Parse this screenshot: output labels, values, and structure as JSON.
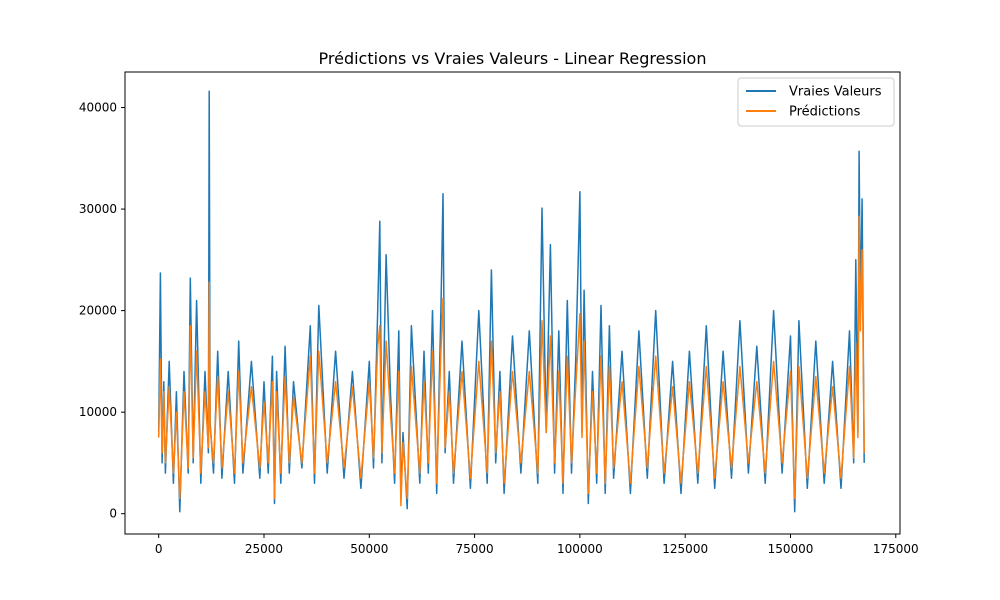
{
  "chart_data": {
    "type": "line",
    "title": "Prédictions vs Vraies Valeurs - Linear Regression",
    "xlabel": "",
    "ylabel": "",
    "xlim": [
      -8000,
      176000
    ],
    "ylim": [
      -2000,
      43500
    ],
    "x_ticks": [
      0,
      25000,
      50000,
      75000,
      100000,
      125000,
      150000,
      175000
    ],
    "y_ticks": [
      0,
      10000,
      20000,
      30000,
      40000
    ],
    "x_tick_labels": [
      "0",
      "25000",
      "50000",
      "75000",
      "100000",
      "125000",
      "150000",
      "175000"
    ],
    "y_tick_labels": [
      "0",
      "10000",
      "20000",
      "30000",
      "40000"
    ],
    "legend": {
      "placement": "top-right"
    },
    "grid": false,
    "series": [
      {
        "name": "Vraies Valeurs",
        "color": "#1f77b4",
        "x": [
          0,
          400,
          800,
          1200,
          1600,
          2500,
          3500,
          4200,
          5000,
          6000,
          7000,
          7500,
          8200,
          9000,
          10000,
          11000,
          11800,
          12000,
          12200,
          13000,
          14000,
          15000,
          16500,
          18000,
          19000,
          20000,
          22000,
          24000,
          25000,
          26000,
          27000,
          27500,
          28000,
          29000,
          30000,
          31000,
          32000,
          34000,
          36000,
          37000,
          38000,
          40000,
          42000,
          44000,
          46000,
          48000,
          50000,
          51000,
          52000,
          52500,
          53000,
          54000,
          55000,
          56000,
          57000,
          57500,
          58000,
          59000,
          60000,
          62000,
          63000,
          64000,
          65000,
          66000,
          67000,
          67500,
          68000,
          69000,
          70000,
          72000,
          74000,
          76000,
          78000,
          79000,
          80000,
          81000,
          82000,
          84000,
          86000,
          88000,
          90000,
          91000,
          92000,
          93000,
          94000,
          95000,
          96000,
          97000,
          98000,
          99000,
          100000,
          100500,
          101000,
          102000,
          103000,
          104000,
          105000,
          106000,
          107000,
          108000,
          110000,
          112000,
          114000,
          116000,
          118000,
          120000,
          122000,
          124000,
          126000,
          128000,
          130000,
          132000,
          134000,
          136000,
          138000,
          140000,
          142000,
          144000,
          146000,
          148000,
          150000,
          151000,
          152000,
          154000,
          156000,
          158000,
          160000,
          162000,
          164000,
          165000,
          165500,
          166000,
          166300,
          166600,
          167000,
          167500
        ],
        "y": [
          8000,
          23700,
          5000,
          13000,
          4000,
          15000,
          3000,
          12000,
          200,
          14000,
          4000,
          23200,
          5000,
          21000,
          3000,
          14000,
          6000,
          41600,
          9000,
          4000,
          16000,
          3500,
          14000,
          3000,
          17000,
          4000,
          15000,
          3500,
          13000,
          4000,
          15500,
          1000,
          14000,
          3000,
          16500,
          4000,
          13000,
          4500,
          18500,
          3000,
          20500,
          4000,
          16000,
          3500,
          14000,
          2500,
          15000,
          4500,
          20000,
          28800,
          5000,
          25500,
          12000,
          3000,
          18000,
          1500,
          8000,
          500,
          18500,
          3000,
          16000,
          4000,
          20000,
          2000,
          20000,
          31500,
          6000,
          14000,
          3000,
          17000,
          2500,
          20000,
          3000,
          24000,
          5000,
          14000,
          2000,
          17500,
          4000,
          18000,
          3000,
          30100,
          8000,
          26500,
          4000,
          18000,
          2000,
          21000,
          4000,
          15000,
          31700,
          8000,
          22000,
          1000,
          14000,
          3000,
          20500,
          2000,
          18500,
          3500,
          16000,
          2000,
          18000,
          3500,
          20000,
          3000,
          15000,
          2000,
          16000,
          3000,
          18500,
          2500,
          16000,
          3500,
          19000,
          4000,
          16500,
          3000,
          20000,
          4000,
          17500,
          200,
          19000,
          2500,
          17000,
          3000,
          15000,
          2500,
          18000,
          5000,
          25000,
          8000,
          35700,
          20000,
          31000,
          5000
        ]
      },
      {
        "name": "Prédictions",
        "color": "#ff7f0e",
        "x": [
          0,
          400,
          800,
          1200,
          1600,
          2500,
          3500,
          4200,
          5000,
          6000,
          7000,
          7500,
          8200,
          9000,
          10000,
          11000,
          11800,
          12000,
          12200,
          13000,
          14000,
          15000,
          16500,
          18000,
          19000,
          20000,
          22000,
          24000,
          25000,
          26000,
          27000,
          27500,
          28000,
          29000,
          30000,
          31000,
          32000,
          34000,
          36000,
          37000,
          38000,
          40000,
          42000,
          44000,
          46000,
          48000,
          50000,
          51000,
          52000,
          52500,
          53000,
          54000,
          55000,
          56000,
          57000,
          57500,
          58000,
          59000,
          60000,
          62000,
          63000,
          64000,
          65000,
          66000,
          67000,
          67500,
          68000,
          69000,
          70000,
          72000,
          74000,
          76000,
          78000,
          79000,
          80000,
          81000,
          82000,
          84000,
          86000,
          88000,
          90000,
          91000,
          92000,
          93000,
          94000,
          95000,
          96000,
          97000,
          98000,
          99000,
          100000,
          100500,
          101000,
          102000,
          103000,
          104000,
          105000,
          106000,
          107000,
          108000,
          110000,
          112000,
          114000,
          116000,
          118000,
          120000,
          122000,
          124000,
          126000,
          128000,
          130000,
          132000,
          134000,
          136000,
          138000,
          140000,
          142000,
          144000,
          146000,
          148000,
          150000,
          151000,
          152000,
          154000,
          156000,
          158000,
          160000,
          162000,
          164000,
          165000,
          165500,
          166000,
          166300,
          166600,
          167000,
          167500
        ],
        "y": [
          7500,
          15200,
          6000,
          12000,
          5000,
          12500,
          4000,
          10000,
          1500,
          12000,
          4500,
          18500,
          5500,
          16000,
          4000,
          12000,
          6500,
          22800,
          8500,
          5000,
          13500,
          4500,
          12000,
          4000,
          14000,
          5000,
          12500,
          4500,
          11000,
          5000,
          13000,
          1500,
          12000,
          4000,
          13500,
          5000,
          11500,
          5000,
          15500,
          4000,
          16000,
          5000,
          13000,
          4500,
          12500,
          3500,
          13000,
          5500,
          16500,
          18500,
          6000,
          17000,
          10000,
          4000,
          14000,
          800,
          7000,
          1500,
          14500,
          4000,
          13000,
          5000,
          16000,
          3000,
          16000,
          21200,
          6500,
          12000,
          4000,
          14000,
          3500,
          15000,
          4000,
          17000,
          6000,
          12000,
          3000,
          14000,
          5000,
          14000,
          4000,
          19000,
          8000,
          17500,
          5000,
          14000,
          3000,
          15500,
          5000,
          12500,
          19700,
          7500,
          17000,
          2000,
          12000,
          4000,
          15500,
          3000,
          14500,
          4500,
          13000,
          3000,
          14500,
          4500,
          15500,
          4000,
          12500,
          3000,
          13000,
          4000,
          14500,
          3500,
          13000,
          4500,
          14500,
          5000,
          13000,
          4000,
          15000,
          5000,
          14000,
          1500,
          14500,
          3500,
          13500,
          4000,
          12500,
          3500,
          14500,
          5500,
          16800,
          7500,
          29300,
          18000,
          26000,
          6000
        ]
      }
    ]
  }
}
